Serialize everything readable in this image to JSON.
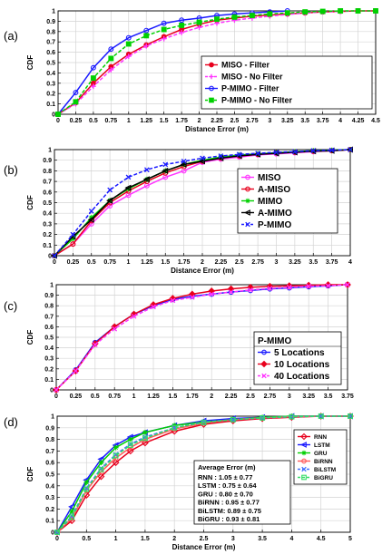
{
  "chart_data": [
    {
      "panel": "(a)",
      "type": "line",
      "xlabel": "Distance Error (m)",
      "ylabel": "CDF",
      "xlim": [
        0,
        4.5
      ],
      "ylim": [
        0,
        1
      ],
      "xticks": [
        "0",
        "0.25",
        "0.5",
        "0.75",
        "1",
        "1.25",
        "1.5",
        "1.75",
        "2",
        "2.25",
        "2.5",
        "2.75",
        "3",
        "3.25",
        "3.5",
        "3.75",
        "4",
        "4.25",
        "4.5"
      ],
      "yticks": [
        "0",
        "0.1",
        "0.2",
        "0.3",
        "0.4",
        "0.5",
        "0.6",
        "0.7",
        "0.8",
        "0.9",
        "1"
      ],
      "grid": true,
      "legend_position": "center-right",
      "series": [
        {
          "name": "MISO     - Filter",
          "color": "#e8001c",
          "marker": "circle-filled",
          "dash": "solid",
          "x": [
            0,
            0.25,
            0.5,
            0.75,
            1,
            1.25,
            1.5,
            1.75,
            2,
            2.25,
            2.5,
            2.75,
            3,
            3.25,
            3.5,
            3.75,
            4,
            4.25,
            4.5
          ],
          "y": [
            0,
            0.11,
            0.3,
            0.46,
            0.58,
            0.67,
            0.75,
            0.82,
            0.87,
            0.91,
            0.93,
            0.95,
            0.96,
            0.97,
            0.98,
            0.99,
            0.995,
            1,
            1
          ]
        },
        {
          "name": "MISO     - No Filter",
          "color": "#ff33ff",
          "marker": "plus",
          "dash": "dashed",
          "x": [
            0,
            0.25,
            0.5,
            0.75,
            1,
            1.25,
            1.5,
            1.75,
            2,
            2.25,
            2.5,
            2.75,
            3,
            3.25,
            3.5,
            3.75,
            4,
            4.25,
            4.5
          ],
          "y": [
            0,
            0.1,
            0.27,
            0.43,
            0.56,
            0.66,
            0.73,
            0.79,
            0.84,
            0.88,
            0.91,
            0.93,
            0.95,
            0.965,
            0.98,
            0.99,
            0.995,
            1,
            1
          ]
        },
        {
          "name": "P-MIMO - Filter",
          "color": "#1a1aff",
          "marker": "circle-open",
          "dash": "solid",
          "x": [
            0,
            0.25,
            0.5,
            0.75,
            1,
            1.25,
            1.5,
            1.75,
            2,
            2.25,
            2.5,
            2.75,
            3,
            3.25
          ],
          "y": [
            0,
            0.21,
            0.45,
            0.63,
            0.74,
            0.81,
            0.88,
            0.91,
            0.93,
            0.955,
            0.97,
            0.98,
            0.99,
            1
          ]
        },
        {
          "name": "P-MIMO - No Filter",
          "color": "#00d000",
          "marker": "square-filled",
          "dash": "dashed",
          "x": [
            0,
            0.25,
            0.5,
            0.75,
            1,
            1.25,
            1.5,
            1.75,
            2,
            2.25,
            2.5,
            2.75,
            3,
            3.25,
            3.5,
            3.75,
            4,
            4.25,
            4.5
          ],
          "y": [
            0,
            0.12,
            0.35,
            0.54,
            0.68,
            0.76,
            0.82,
            0.86,
            0.89,
            0.92,
            0.94,
            0.955,
            0.97,
            0.98,
            0.99,
            0.995,
            1,
            1,
            1
          ]
        }
      ]
    },
    {
      "panel": "(b)",
      "type": "line",
      "xlabel": "Distance Error (m)",
      "ylabel": "CDF",
      "xlim": [
        0,
        4
      ],
      "ylim": [
        0,
        1
      ],
      "xticks": [
        "0",
        "0.25",
        "0.5",
        "0.75",
        "1",
        "1.25",
        "1.5",
        "1.75",
        "2",
        "2.25",
        "2.5",
        "2.75",
        "3",
        "3.25",
        "3.5",
        "3.75",
        "4"
      ],
      "yticks": [
        "0",
        "0.1",
        "0.2",
        "0.3",
        "0.4",
        "0.5",
        "0.6",
        "0.7",
        "0.8",
        "0.9",
        "1"
      ],
      "grid": true,
      "legend_position": "center-right",
      "series": [
        {
          "name": "MISO",
          "color": "#ff33ff",
          "marker": "circle-open",
          "dash": "solid",
          "x": [
            0,
            0.25,
            0.5,
            0.75,
            1,
            1.25,
            1.5,
            1.75,
            2,
            2.25,
            2.5,
            2.75,
            3,
            3.25,
            3.5,
            3.75,
            4
          ],
          "y": [
            0,
            0.11,
            0.3,
            0.47,
            0.57,
            0.66,
            0.74,
            0.8,
            0.88,
            0.91,
            0.93,
            0.95,
            0.96,
            0.97,
            0.98,
            0.99,
            1
          ]
        },
        {
          "name": "A-MISO",
          "color": "#e8001c",
          "marker": "circle-open",
          "dash": "solid",
          "x": [
            0,
            0.25,
            0.5,
            0.75,
            1,
            1.25,
            1.5,
            1.75,
            2,
            2.25,
            2.5,
            2.75,
            3,
            3.25,
            3.5,
            3.75,
            4
          ],
          "y": [
            0,
            0.11,
            0.33,
            0.5,
            0.61,
            0.7,
            0.78,
            0.84,
            0.89,
            0.92,
            0.94,
            0.955,
            0.97,
            0.975,
            0.985,
            0.99,
            1
          ]
        },
        {
          "name": "MIMO",
          "color": "#00d000",
          "marker": "asterisk",
          "dash": "solid",
          "x": [
            0,
            0.25,
            0.5,
            0.75,
            1,
            1.25,
            1.5,
            1.75,
            2,
            2.25,
            2.5,
            2.75,
            3,
            3.25,
            3.5,
            3.75,
            4
          ],
          "y": [
            0,
            0.16,
            0.36,
            0.52,
            0.63,
            0.72,
            0.8,
            0.86,
            0.9,
            0.93,
            0.95,
            0.96,
            0.97,
            0.98,
            0.99,
            0.995,
            1
          ]
        },
        {
          "name": "A-MIMO",
          "color": "#000000",
          "marker": "triangle-left",
          "dash": "solid",
          "x": [
            0,
            0.25,
            0.5,
            0.75,
            1,
            1.25,
            1.5,
            1.75,
            2,
            2.25,
            2.5,
            2.75,
            3,
            3.25,
            3.5,
            3.75,
            4
          ],
          "y": [
            0,
            0.18,
            0.34,
            0.52,
            0.64,
            0.72,
            0.8,
            0.86,
            0.89,
            0.92,
            0.94,
            0.955,
            0.965,
            0.975,
            0.985,
            0.99,
            1
          ]
        },
        {
          "name": "P-MIMO",
          "color": "#1a1aff",
          "marker": "x",
          "dash": "dashed",
          "x": [
            0,
            0.25,
            0.5,
            0.75,
            1,
            1.25,
            1.5,
            1.75,
            2,
            2.25,
            2.5,
            2.75,
            3,
            3.25,
            3.5,
            3.75,
            4
          ],
          "y": [
            0,
            0.2,
            0.42,
            0.62,
            0.74,
            0.81,
            0.86,
            0.89,
            0.92,
            0.94,
            0.955,
            0.965,
            0.975,
            0.98,
            0.99,
            0.995,
            1
          ]
        }
      ]
    },
    {
      "panel": "(c)",
      "type": "line",
      "xlabel": "",
      "ylabel": "CDF",
      "xlim": [
        0,
        3.75
      ],
      "ylim": [
        0,
        1
      ],
      "xticks": [
        "0",
        "0.25",
        "0.5",
        "0.75",
        "1",
        "1.25",
        "1.5",
        "1.75",
        "2",
        "2.25",
        "2.5",
        "2.75",
        "3",
        "3.25",
        "3.5",
        "3.75"
      ],
      "yticks": [
        "0",
        "0.1",
        "0.2",
        "0.3",
        "0.4",
        "0.5",
        "0.6",
        "0.7",
        "0.8",
        "0.9",
        "1"
      ],
      "grid": true,
      "legend_title": "P-MIMO",
      "legend_position": "center-right",
      "series": [
        {
          "name": "5 Locations",
          "color": "#1a1aff",
          "marker": "circle-open",
          "dash": "solid",
          "x": [
            0,
            0.25,
            0.5,
            0.75,
            1,
            1.25,
            1.5,
            1.75,
            2,
            2.25,
            2.5,
            2.75,
            3,
            3.25,
            3.5,
            3.75
          ],
          "y": [
            0,
            0.19,
            0.45,
            0.6,
            0.72,
            0.8,
            0.86,
            0.89,
            0.91,
            0.93,
            0.945,
            0.96,
            0.97,
            0.98,
            0.99,
            1
          ]
        },
        {
          "name": "10 Locations",
          "color": "#e8001c",
          "marker": "diamond-filled",
          "dash": "solid",
          "x": [
            0,
            0.25,
            0.5,
            0.75,
            1,
            1.25,
            1.5,
            1.75,
            2,
            2.25,
            2.5,
            2.75,
            3,
            3.25,
            3.5,
            3.75
          ],
          "y": [
            0,
            0.18,
            0.44,
            0.6,
            0.72,
            0.81,
            0.87,
            0.91,
            0.94,
            0.96,
            0.975,
            0.985,
            0.99,
            0.995,
            1,
            1
          ]
        },
        {
          "name": "40 Locations",
          "color": "#ff33ff",
          "marker": "x",
          "dash": "dashed",
          "x": [
            0,
            0.25,
            0.5,
            0.75,
            1,
            1.25,
            1.5,
            1.75,
            2,
            2.25,
            2.5,
            2.75,
            3,
            3.25,
            3.5,
            3.75
          ],
          "y": [
            0,
            0.18,
            0.43,
            0.58,
            0.7,
            0.79,
            0.85,
            0.88,
            0.91,
            0.93,
            0.95,
            0.965,
            0.975,
            0.985,
            0.99,
            1
          ]
        }
      ]
    },
    {
      "panel": "(d)",
      "type": "line",
      "xlabel": "Distance Error (m)",
      "ylabel": "CDF",
      "xlim": [
        0,
        5
      ],
      "ylim": [
        0,
        1
      ],
      "xticks": [
        "0",
        "0.5",
        "1",
        "1.5",
        "2",
        "2.5",
        "3",
        "3.5",
        "4",
        "4.5",
        "5"
      ],
      "yticks": [
        "0",
        "0.1",
        "0.2",
        "0.3",
        "0.4",
        "0.5",
        "0.6",
        "0.7",
        "0.8",
        "0.9",
        "1"
      ],
      "grid": true,
      "legend_position": "top-right",
      "annotation": {
        "title": "Average Error (m)",
        "lines": [
          "RNN    : 1.05 ± 0.77",
          "LSTM   : 0.75 ± 0.64",
          "GRU     : 0.80 ± 0.70",
          "BiRNN   : 0.95 ± 0.77",
          "BiLSTM: 0.89 ± 0.75",
          "BiGRU   : 0.93 ± 0.81"
        ]
      },
      "series": [
        {
          "name": "RNN",
          "color": "#e8001c",
          "marker": "diamond-open",
          "dash": "solid",
          "x": [
            0,
            0.25,
            0.5,
            0.75,
            1,
            1.25,
            1.5,
            2,
            2.5,
            3,
            3.5,
            4,
            4.5,
            5
          ],
          "y": [
            0,
            0.1,
            0.32,
            0.48,
            0.6,
            0.7,
            0.77,
            0.87,
            0.93,
            0.96,
            0.98,
            0.99,
            1,
            1
          ]
        },
        {
          "name": "LSTM",
          "color": "#1a1aff",
          "marker": "triangle-left",
          "dash": "solid",
          "x": [
            0,
            0.25,
            0.5,
            0.75,
            1,
            1.25,
            1.5,
            2,
            2.5,
            3,
            3.5,
            4,
            4.5,
            5
          ],
          "y": [
            0,
            0.22,
            0.45,
            0.63,
            0.75,
            0.82,
            0.86,
            0.92,
            0.96,
            0.98,
            0.99,
            1,
            1,
            1
          ]
        },
        {
          "name": "GRU",
          "color": "#00d000",
          "marker": "asterisk",
          "dash": "solid",
          "x": [
            0,
            0.25,
            0.5,
            0.75,
            1,
            1.25,
            1.5,
            2,
            2.5,
            3,
            3.5,
            4,
            4.5,
            5
          ],
          "y": [
            0,
            0.18,
            0.43,
            0.6,
            0.73,
            0.8,
            0.86,
            0.92,
            0.95,
            0.97,
            0.99,
            1,
            1,
            1
          ]
        },
        {
          "name": "BiRNN",
          "color": "#ff5a5a",
          "marker": "circle-open",
          "dash": "solid",
          "x": [
            0,
            0.25,
            0.5,
            0.75,
            1,
            1.25,
            1.5,
            2,
            2.5,
            3,
            3.5,
            4,
            4.5,
            5
          ],
          "y": [
            0,
            0.12,
            0.36,
            0.52,
            0.64,
            0.73,
            0.8,
            0.89,
            0.94,
            0.97,
            0.985,
            0.995,
            1,
            1
          ]
        },
        {
          "name": "BiLSTM",
          "color": "#3f6fff",
          "marker": "x",
          "dash": "dashed",
          "x": [
            0,
            0.25,
            0.5,
            0.75,
            1,
            1.25,
            1.5,
            2,
            2.5,
            3,
            3.5,
            4,
            4.5,
            5
          ],
          "y": [
            0,
            0.14,
            0.38,
            0.55,
            0.67,
            0.76,
            0.82,
            0.9,
            0.95,
            0.97,
            0.985,
            0.995,
            1,
            1
          ]
        },
        {
          "name": "BiGRU",
          "color": "#33dd66",
          "marker": "square-open",
          "dash": "dashed",
          "x": [
            0,
            0.25,
            0.5,
            0.75,
            1,
            1.25,
            1.5,
            2,
            2.5,
            3,
            3.5,
            4,
            4.5,
            5
          ],
          "y": [
            0,
            0.13,
            0.37,
            0.54,
            0.66,
            0.75,
            0.81,
            0.9,
            0.945,
            0.97,
            0.985,
            0.995,
            1,
            1
          ]
        }
      ]
    }
  ]
}
